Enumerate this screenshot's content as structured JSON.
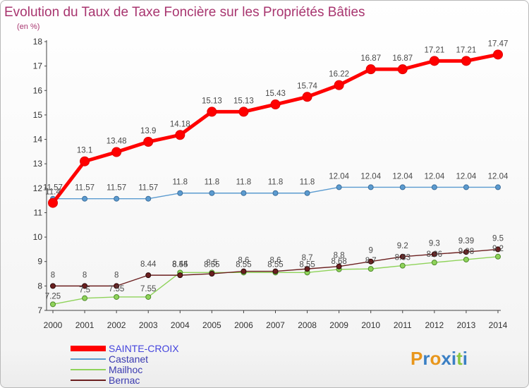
{
  "chart_data": {
    "type": "line",
    "title": "Evolution du Taux de Taxe Foncière sur les Propriétés Bâties",
    "ylabel": "(en %)",
    "xlabel": "",
    "x": [
      "2000",
      "2001",
      "2002",
      "2003",
      "2004",
      "2005",
      "2006",
      "2007",
      "2008",
      "2009",
      "2010",
      "2011",
      "2012",
      "2013",
      "2014"
    ],
    "ylim": [
      7,
      18
    ],
    "yticks": [
      7,
      8,
      9,
      10,
      11,
      12,
      13,
      14,
      15,
      16,
      17,
      18
    ],
    "series": [
      {
        "name": "SAINTE-CROIX",
        "color": "#ff0000",
        "values": [
          11.4,
          13.1,
          13.48,
          13.9,
          14.18,
          15.13,
          15.13,
          15.43,
          15.74,
          16.22,
          16.87,
          16.87,
          17.21,
          17.21,
          17.47
        ],
        "labels": [
          "11.4",
          "13.1",
          "13.48",
          "13.9",
          "14.18",
          "15.13",
          "15.13",
          "15.43",
          "15.74",
          "16.22",
          "16.87",
          "16.87",
          "17.21",
          "17.21",
          "17.47"
        ]
      },
      {
        "name": "Castanet",
        "color": "#5b9bd0",
        "values": [
          11.57,
          11.57,
          11.57,
          11.57,
          11.8,
          11.8,
          11.8,
          11.8,
          11.8,
          12.04,
          12.04,
          12.04,
          12.04,
          12.04,
          12.04
        ],
        "labels": [
          "11.57",
          "11.57",
          "11.57",
          "11.57",
          "11.8",
          "11.8",
          "11.8",
          "11.8",
          "11.8",
          "12.04",
          "12.04",
          "12.04",
          "12.04",
          "12.04",
          "12.04"
        ]
      },
      {
        "name": "Mailhoc",
        "color": "#8fd35a",
        "values": [
          7.25,
          7.5,
          7.55,
          7.55,
          8.55,
          8.55,
          8.55,
          8.55,
          8.55,
          8.68,
          8.7,
          8.83,
          8.96,
          9.08,
          9.2
        ],
        "labels": [
          "7.25",
          "7.5",
          "7.55",
          "7.55",
          "8.55",
          "8.55",
          "8.55",
          "8.55",
          "8.55",
          "8.68",
          "8.7",
          "8.83",
          "8.96",
          "9.08",
          "9.2"
        ]
      },
      {
        "name": "Bernac",
        "color": "#6b1f1f",
        "values": [
          8,
          8,
          8,
          8.44,
          8.44,
          8.5,
          8.6,
          8.6,
          8.7,
          8.8,
          9,
          9.2,
          9.3,
          9.39,
          9.5
        ],
        "labels": [
          "8",
          "8",
          "8",
          "8.44",
          "8.44",
          "8.5",
          "8.6",
          "8.6",
          "8.7",
          "8.8",
          "9",
          "9.2",
          "9.3",
          "9.39",
          "9.5"
        ]
      }
    ],
    "legend": [
      "SAINTE-CROIX",
      "Castanet",
      "Mailhoc",
      "Bernac"
    ],
    "legend_position": "bottom-left"
  },
  "brand": {
    "text": "Proxiti",
    "letters": [
      "P",
      "r",
      "o",
      "x",
      "i",
      "t",
      "i"
    ],
    "colors": [
      "#e8961c",
      "#3a7fc4",
      "#e8961c",
      "#3a7fc4",
      "#3a7fc4",
      "#8cc63f",
      "#3a7fc4"
    ]
  }
}
